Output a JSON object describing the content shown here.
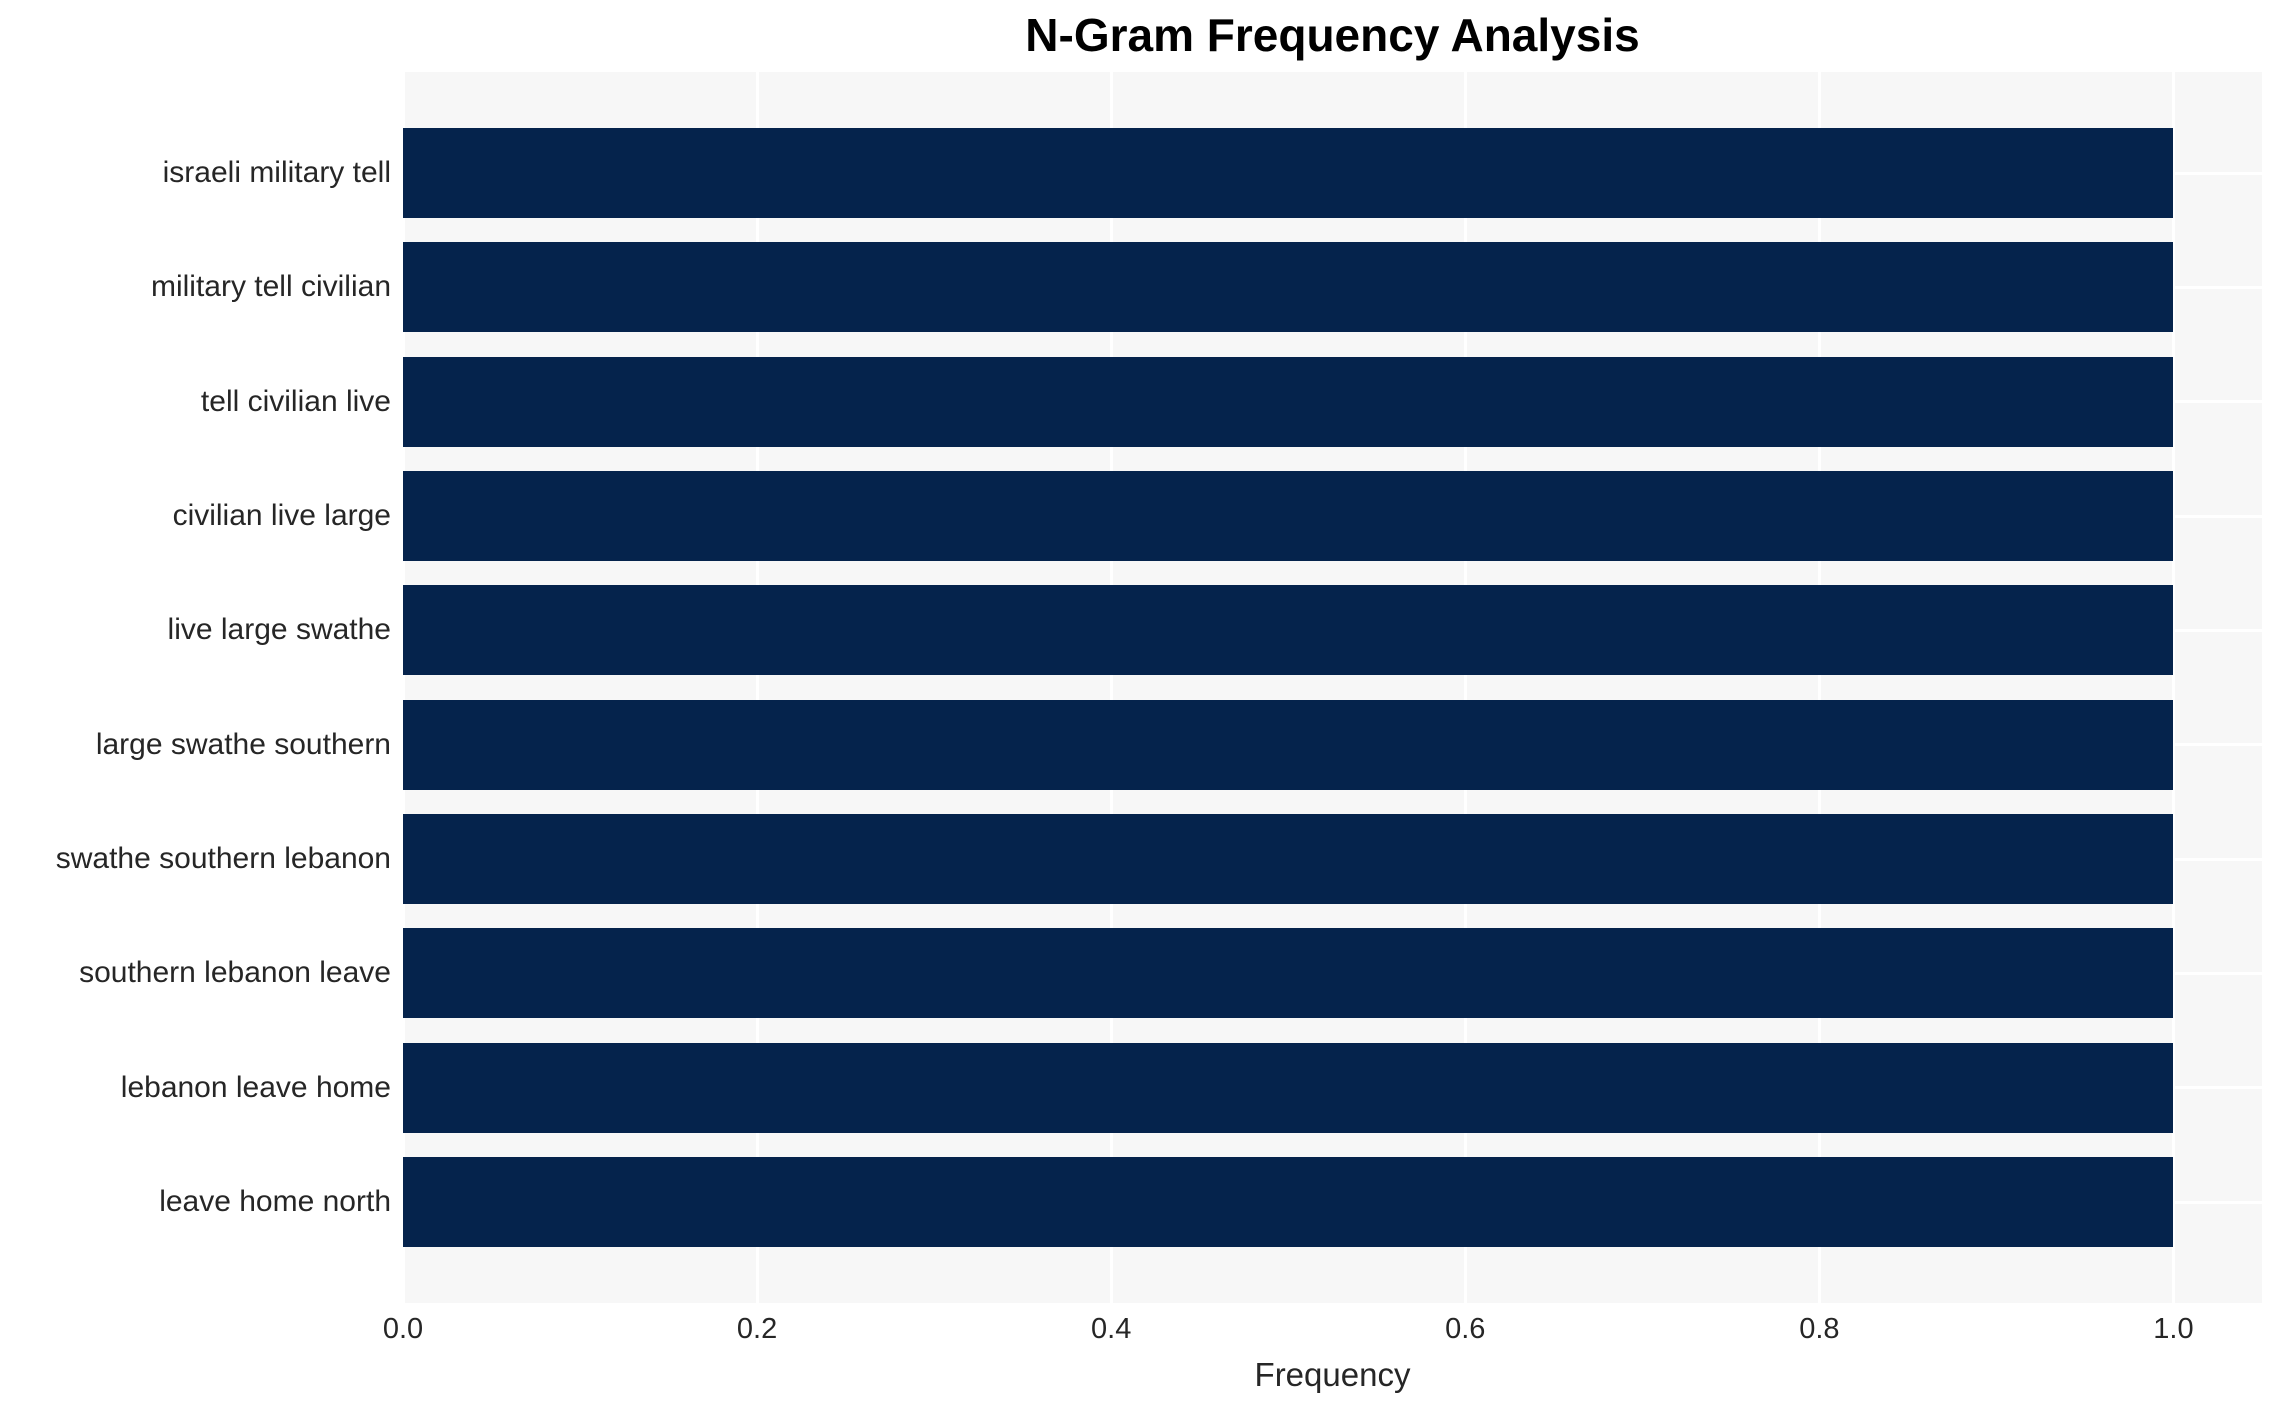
{
  "chart_data": {
    "type": "bar",
    "orientation": "horizontal",
    "title": "N-Gram Frequency Analysis",
    "xlabel": "Frequency",
    "ylabel": "",
    "categories": [
      "israeli military tell",
      "military tell civilian",
      "tell civilian live",
      "civilian live large",
      "live large swathe",
      "large swathe southern",
      "swathe southern lebanon",
      "southern lebanon leave",
      "lebanon leave home",
      "leave home north"
    ],
    "values": [
      1.0,
      1.0,
      1.0,
      1.0,
      1.0,
      1.0,
      1.0,
      1.0,
      1.0,
      1.0
    ],
    "xlim": [
      0,
      1.05
    ],
    "xticks": [
      0.0,
      0.2,
      0.4,
      0.6,
      0.8,
      1.0
    ],
    "xtick_labels": [
      "0.0",
      "0.2",
      "0.4",
      "0.6",
      "0.8",
      "1.0"
    ],
    "grid": true,
    "legend": false,
    "colors": {
      "bar": "#05234c",
      "panel_bg": "#f7f7f7",
      "grid": "#ffffff",
      "tick_text": "#262626",
      "title_text": "#000000"
    }
  }
}
